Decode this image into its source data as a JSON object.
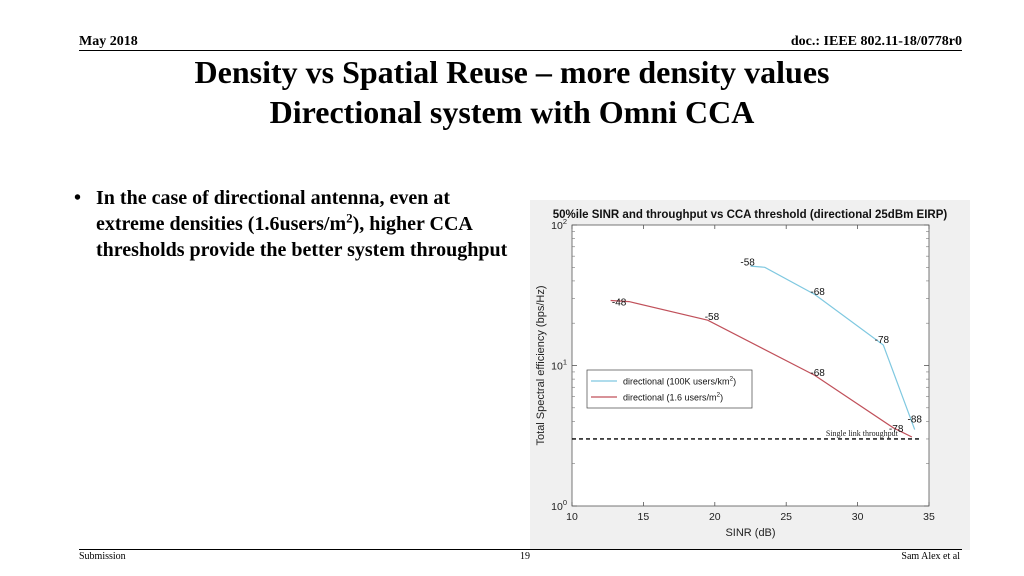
{
  "header": {
    "date": "May 2018",
    "doc": "doc.: IEEE 802.11-18/0778r0"
  },
  "title": {
    "line1": "Density vs Spatial Reuse – more density values",
    "line2": "Directional system with Omni CCA"
  },
  "bullet": {
    "marker": "•",
    "text_before": "In the case of directional antenna, even at extreme densities (1.6users/m",
    "superscript": "2",
    "text_after": "), higher CCA thresholds provide the better system throughput"
  },
  "footer": {
    "left": "Submission",
    "page": "19",
    "right": "Sam Alex et al"
  },
  "chart_data": {
    "type": "line",
    "title": "50%ile SINR and throughput vs CCA threshold (directional 25dBm EIRP)",
    "xlabel": "SINR (dB)",
    "ylabel": "Total Spectral efficiency (bps/Hz)",
    "xlim": [
      10,
      35
    ],
    "ylim": [
      1,
      100
    ],
    "yscale": "log",
    "x_ticks": [
      "10",
      "15",
      "20",
      "25",
      "30",
      "35"
    ],
    "y_tick_base": "10",
    "y_tick_exponents": [
      "0",
      "1",
      "2"
    ],
    "grid": false,
    "legend_position": "middle-left",
    "colors": {
      "directional_100k": "#7fc8e0",
      "directional_1_6": "#c0505a",
      "threshold": "#000000",
      "plot_bg": "#ffffff",
      "axes_bg": "#f0f0f0"
    },
    "series": [
      {
        "legend_text": "directional (100K users/km",
        "legend_sup": "2",
        "legend_close": ")",
        "color": "#7fc8e0",
        "x": [
          22.5,
          23.5,
          27.0,
          31.8,
          34.0
        ],
        "y": [
          51,
          50,
          32,
          14,
          3.5
        ],
        "point_labels": [
          {
            "text": "-58",
            "x": 22.3,
            "y": 55
          },
          {
            "text": "-68",
            "x": 27.2,
            "y": 34
          },
          {
            "text": "-78",
            "x": 31.7,
            "y": 15.5
          },
          {
            "text": "-88",
            "x": 34.0,
            "y": 4.2
          }
        ]
      },
      {
        "legend_text": "directional (1.6 users/m",
        "legend_sup": "2",
        "legend_close": ")",
        "color": "#c0505a",
        "x": [
          12.7,
          14.0,
          19.5,
          27.0,
          32.5,
          33.8
        ],
        "y": [
          29,
          28.5,
          21,
          8.5,
          3.6,
          3.1
        ],
        "point_labels": [
          {
            "text": "-48",
            "x": 13.3,
            "y": 28.5
          },
          {
            "text": "-58",
            "x": 19.8,
            "y": 22.5
          },
          {
            "text": "-68",
            "x": 27.2,
            "y": 9.0
          },
          {
            "text": "-78",
            "x": 32.7,
            "y": 3.6
          }
        ]
      }
    ],
    "reference_line": {
      "label": "Single link throughput",
      "y": 3.0,
      "x_from": 10,
      "x_to": 34.5
    }
  }
}
